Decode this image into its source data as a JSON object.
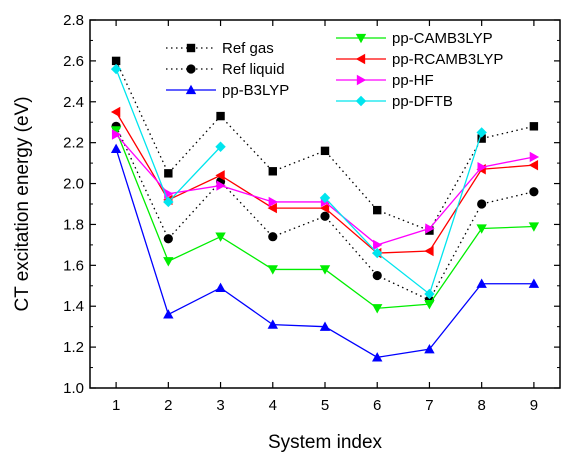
{
  "chart_data": {
    "type": "line",
    "xlabel": "System index",
    "ylabel": "CT excitation energy (eV)",
    "x": [
      1,
      2,
      3,
      4,
      5,
      6,
      7,
      8,
      9
    ],
    "xlim": [
      0.5,
      9.5
    ],
    "ylim": [
      1.0,
      2.8
    ],
    "xticks": [
      "1",
      "2",
      "3",
      "4",
      "5",
      "6",
      "7",
      "8",
      "9"
    ],
    "yticks": [
      "1.0",
      "1.2",
      "1.4",
      "1.6",
      "1.8",
      "2.0",
      "2.2",
      "2.4",
      "2.6",
      "2.8"
    ],
    "grid": false,
    "legend_placement": "top",
    "series": [
      {
        "name": "Ref gas",
        "color": "#000000",
        "marker": "square",
        "dashed": true,
        "values": [
          2.6,
          2.05,
          2.33,
          2.06,
          2.16,
          1.87,
          1.77,
          2.22,
          2.28
        ]
      },
      {
        "name": "Ref liquid",
        "color": "#000000",
        "marker": "circle",
        "dashed": true,
        "values": [
          2.28,
          1.73,
          2.01,
          1.74,
          1.84,
          1.55,
          1.43,
          1.9,
          1.96
        ]
      },
      {
        "name": "pp-B3LYP",
        "color": "#0000ff",
        "marker": "triangle-up",
        "dashed": false,
        "values": [
          2.17,
          1.36,
          1.49,
          1.31,
          1.3,
          1.15,
          1.19,
          1.51,
          1.51
        ]
      },
      {
        "name": "pp-CAMB3LYP",
        "color": "#00ee00",
        "marker": "triangle-down",
        "dashed": false,
        "values": [
          2.26,
          1.62,
          1.74,
          1.58,
          1.58,
          1.39,
          1.41,
          1.78,
          1.79
        ]
      },
      {
        "name": "pp-RCAMB3LYP",
        "color": "#ff0000",
        "marker": "triangle-left",
        "dashed": false,
        "values": [
          2.35,
          1.92,
          2.04,
          1.88,
          1.88,
          1.66,
          1.67,
          2.07,
          2.09
        ]
      },
      {
        "name": "pp-HF",
        "color": "#ff00ff",
        "marker": "triangle-right",
        "dashed": false,
        "values": [
          2.24,
          1.95,
          1.99,
          1.91,
          1.91,
          1.7,
          1.78,
          2.08,
          2.13
        ]
      },
      {
        "name": "pp-DFTB",
        "color": "#00e5ee",
        "marker": "diamond",
        "dashed": false,
        "values": [
          2.56,
          1.91,
          2.18,
          null,
          1.93,
          1.66,
          1.46,
          2.25,
          null
        ]
      }
    ]
  }
}
